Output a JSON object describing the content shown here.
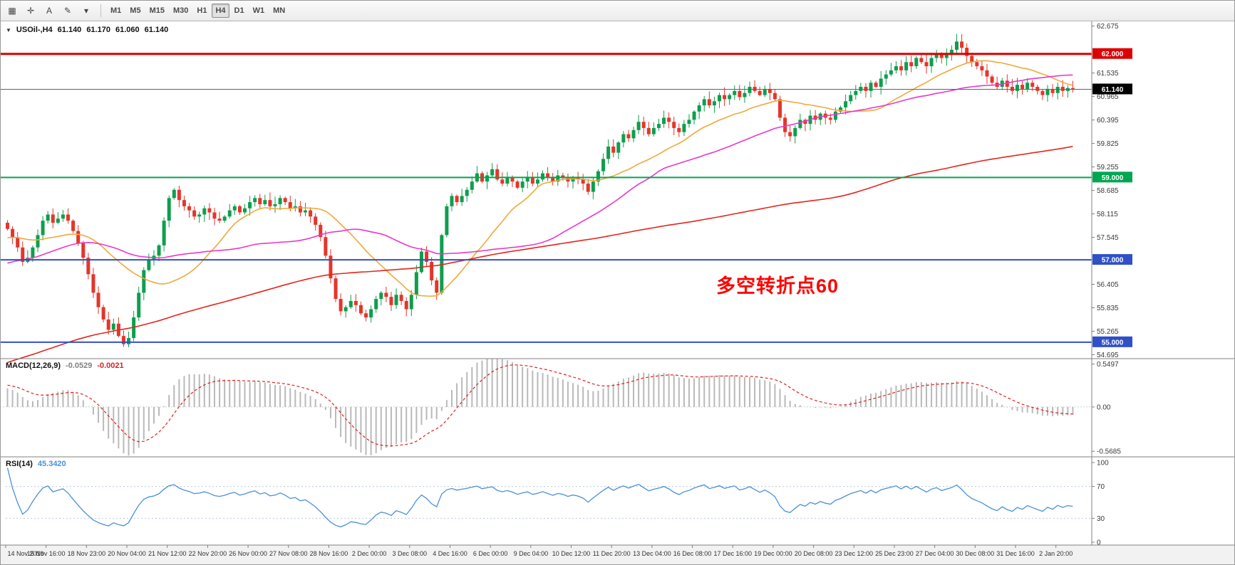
{
  "toolbar": {
    "tools": [
      {
        "name": "charts-window-icon",
        "glyph": "▦"
      },
      {
        "name": "crosshair-icon",
        "glyph": "✛"
      },
      {
        "name": "text-label-tool",
        "glyph": "A"
      },
      {
        "name": "draw-tool-icon",
        "glyph": "✎"
      },
      {
        "name": "tools-dropdown-icon",
        "glyph": "▾"
      }
    ],
    "timeframes": [
      "M1",
      "M5",
      "M15",
      "M30",
      "H1",
      "H4",
      "D1",
      "W1",
      "MN"
    ],
    "active_timeframe": "H4"
  },
  "chart_header": {
    "symbol": "USOil-,H4",
    "open": "61.140",
    "high": "61.170",
    "low": "61.060",
    "close": "61.140"
  },
  "annotation": {
    "text": "多空转折点60",
    "color": "#ff0000"
  },
  "indicators": {
    "macd": {
      "label": "MACD(12,26,9)",
      "main_value": "-0.0529",
      "signal_value": "-0.0021",
      "axis_labels": [
        "0.5497",
        "0.00",
        "-0.5685"
      ],
      "axis_values": [
        0.5497,
        0,
        -0.5685
      ]
    },
    "rsi": {
      "label": "RSI(14)",
      "value": "45.3420",
      "axis_labels": [
        "100",
        "70",
        "30",
        "0"
      ],
      "axis_values": [
        100,
        70,
        30,
        0
      ],
      "levels": [
        70,
        30
      ]
    }
  },
  "chart_data": {
    "type": "candlestick",
    "symbol": "USOil",
    "timeframe": "H4",
    "price_axis": {
      "min": 54.6,
      "max": 62.79,
      "ticks": [
        62.675,
        61.535,
        60.965,
        60.395,
        59.825,
        59.255,
        58.685,
        58.115,
        57.545,
        56.405,
        55.835,
        55.265,
        54.695
      ]
    },
    "hlines": [
      {
        "price": 62.0,
        "label": "62.000",
        "color": "#dd0000",
        "width": 3
      },
      {
        "price": 59.0,
        "label": "59.000",
        "color": "#00a651",
        "width": 2
      },
      {
        "price": 57.0,
        "label": "57.000",
        "color": "#3050c8",
        "width": 2
      },
      {
        "price": 55.0,
        "label": "55.000",
        "color": "#3050c8",
        "width": 2
      }
    ],
    "current_price": {
      "price": 61.14,
      "label": "61.140"
    },
    "time_axis_labels": [
      "14 Nov 2019",
      "15 Nov 16:00",
      "18 Nov 23:00",
      "20 Nov 04:00",
      "21 Nov 12:00",
      "22 Nov 20:00",
      "26 Nov 00:00",
      "27 Nov 08:00",
      "28 Nov 16:00",
      "2 Dec 00:00",
      "3 Dec 08:00",
      "4 Dec 16:00",
      "6 Dec 00:00",
      "9 Dec 04:00",
      "10 Dec 12:00",
      "11 Dec 20:00",
      "13 Dec 04:00",
      "16 Dec 08:00",
      "17 Dec 16:00",
      "19 Dec 00:00",
      "20 Dec 08:00",
      "23 Dec 12:00",
      "25 Dec 23:00",
      "27 Dec 04:00",
      "30 Dec 08:00",
      "31 Dec 16:00",
      "2 Jan 20:00"
    ],
    "colors": {
      "up": "#0e9e4e",
      "down": "#e5352b"
    },
    "moving_averages": [
      {
        "name": "fast-ma",
        "period": 20,
        "color": "#efa93a"
      },
      {
        "name": "medium-ma",
        "period": 44,
        "color": "#e838cc"
      },
      {
        "name": "slow-ma",
        "period": 150,
        "color": "#e3261d"
      }
    ],
    "candles": {
      "first_open": 57.9,
      "closes": [
        57.75,
        57.55,
        57.3,
        56.95,
        57.05,
        57.3,
        57.6,
        57.95,
        58.1,
        57.9,
        58.0,
        58.1,
        57.95,
        57.7,
        57.4,
        57.05,
        56.65,
        56.2,
        55.85,
        55.55,
        55.3,
        55.45,
        55.15,
        54.95,
        55.1,
        55.6,
        56.2,
        56.75,
        57.0,
        57.1,
        57.35,
        57.95,
        58.5,
        58.7,
        58.45,
        58.3,
        58.2,
        58.05,
        58.1,
        58.25,
        58.15,
        58.0,
        57.95,
        58.05,
        58.2,
        58.3,
        58.15,
        58.25,
        58.4,
        58.5,
        58.35,
        58.45,
        58.3,
        58.35,
        58.5,
        58.4,
        58.25,
        58.3,
        58.15,
        58.2,
        58.05,
        57.85,
        57.55,
        57.1,
        56.55,
        56.05,
        55.75,
        55.85,
        56.0,
        55.9,
        55.7,
        55.6,
        55.8,
        56.05,
        56.2,
        56.1,
        55.9,
        56.15,
        56.0,
        55.8,
        56.15,
        56.7,
        57.2,
        56.95,
        56.5,
        56.2,
        57.6,
        58.3,
        58.55,
        58.4,
        58.55,
        58.7,
        58.9,
        59.1,
        58.9,
        59.05,
        59.2,
        58.95,
        58.85,
        59.0,
        58.9,
        58.75,
        58.9,
        59.0,
        58.85,
        58.95,
        59.1,
        59.0,
        58.9,
        59.05,
        59.0,
        58.9,
        59.0,
        58.95,
        58.85,
        58.65,
        58.9,
        59.15,
        59.45,
        59.75,
        59.6,
        59.85,
        60.05,
        59.95,
        60.15,
        60.35,
        60.2,
        60.05,
        60.2,
        60.3,
        60.45,
        60.35,
        60.2,
        60.1,
        60.3,
        60.4,
        60.6,
        60.75,
        60.9,
        60.75,
        60.85,
        61.0,
        60.9,
        61.0,
        61.1,
        60.95,
        61.05,
        61.2,
        61.1,
        61.0,
        61.15,
        61.05,
        60.9,
        60.45,
        60.1,
        60.0,
        60.2,
        60.4,
        60.3,
        60.5,
        60.4,
        60.55,
        60.45,
        60.4,
        60.6,
        60.7,
        60.85,
        61.0,
        61.1,
        61.2,
        61.1,
        61.3,
        61.2,
        61.4,
        61.5,
        61.6,
        61.7,
        61.6,
        61.8,
        61.7,
        61.9,
        61.8,
        61.7,
        61.9,
        62.0,
        61.9,
        62.0,
        62.1,
        62.3,
        62.15,
        61.95,
        61.8,
        61.7,
        61.6,
        61.45,
        61.3,
        61.2,
        61.35,
        61.2,
        61.1,
        61.25,
        61.15,
        61.3,
        61.2,
        61.1,
        61.0,
        61.15,
        61.05,
        61.2,
        61.1,
        61.17,
        61.14
      ]
    }
  }
}
